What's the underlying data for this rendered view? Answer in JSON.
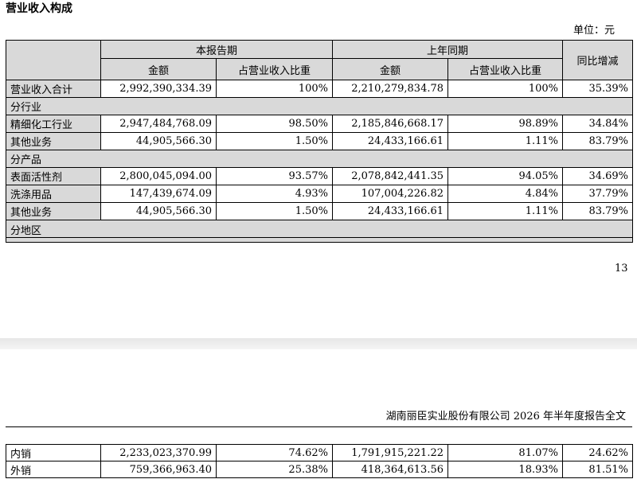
{
  "page": {
    "section_title": "营业收入构成",
    "unit": "单位：元",
    "page_number": "13",
    "footer": "湖南丽臣实业股份有限公司 2026 年半年度报告全文"
  },
  "table": {
    "headers": {
      "current_period": "本报告期",
      "prior_period": "上年同期",
      "yoy": "同比增减",
      "amount": "金额",
      "share": "占营业收入比重"
    },
    "total": {
      "label": "营业收入合计",
      "cur_amt": "2,992,390,334.39",
      "cur_pct": "100%",
      "pri_amt": "2,210,279,834.78",
      "pri_pct": "100%",
      "yoy": "35.39%"
    },
    "sections": {
      "by_industry": "分行业",
      "by_product": "分产品",
      "by_region": "分地区"
    },
    "industry": [
      {
        "label": "精细化工行业",
        "cur_amt": "2,947,484,768.09",
        "cur_pct": "98.50%",
        "pri_amt": "2,185,846,668.17",
        "pri_pct": "98.89%",
        "yoy": "34.84%"
      },
      {
        "label": "其他业务",
        "cur_amt": "44,905,566.30",
        "cur_pct": "1.50%",
        "pri_amt": "24,433,166.61",
        "pri_pct": "1.11%",
        "yoy": "83.79%"
      }
    ],
    "product": [
      {
        "label": "表面活性剂",
        "cur_amt": "2,800,045,094.00",
        "cur_pct": "93.57%",
        "pri_amt": "2,078,842,441.35",
        "pri_pct": "94.05%",
        "yoy": "34.69%"
      },
      {
        "label": "洗涤用品",
        "cur_amt": "147,439,674.09",
        "cur_pct": "4.93%",
        "pri_amt": "107,004,226.82",
        "pri_pct": "4.84%",
        "yoy": "37.79%"
      },
      {
        "label": "其他业务",
        "cur_amt": "44,905,566.30",
        "cur_pct": "1.50%",
        "pri_amt": "24,433,166.61",
        "pri_pct": "1.11%",
        "yoy": "83.79%"
      }
    ],
    "region": [
      {
        "label": "内销",
        "cur_amt": "2,233,023,370.99",
        "cur_pct": "74.62%",
        "pri_amt": "1,791,915,221.22",
        "pri_pct": "81.07%",
        "yoy": "24.62%"
      },
      {
        "label": "外销",
        "cur_amt": "759,366,963.40",
        "cur_pct": "25.38%",
        "pri_amt": "418,364,613.56",
        "pri_pct": "18.93%",
        "yoy": "81.51%"
      }
    ]
  }
}
